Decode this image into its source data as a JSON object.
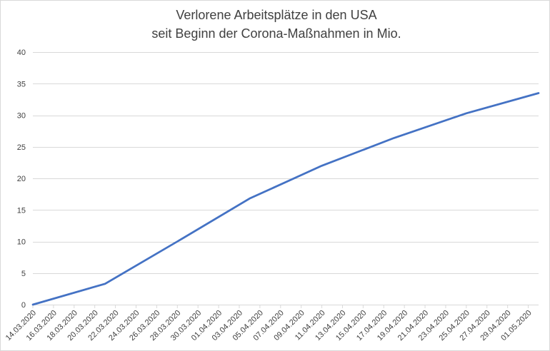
{
  "chart_data": {
    "type": "line",
    "title": [
      "Verlorene Arbeitsplätze in den USA",
      "seit Beginn der Corona-Maßnahmen in Mio."
    ],
    "xlabel": "",
    "ylabel": "",
    "x_tick_labels": [
      "14.03.2020",
      "16.03.2020",
      "18.03.2020",
      "20.03.2020",
      "22.03.2020",
      "24.03.2020",
      "26.03.2020",
      "28.03.2020",
      "30.03.2020",
      "01.04.2020",
      "03.04.2020",
      "05.04.2020",
      "07.04.2020",
      "09.04.2020",
      "11.04.2020",
      "13.04.2020",
      "15.04.2020",
      "17.04.2020",
      "19.04.2020",
      "21.04.2020",
      "23.04.2020",
      "25.04.2020",
      "27.04.2020",
      "29.04.2020",
      "01.05.2020"
    ],
    "xlim": [
      "14.03.2020",
      "02.05.2020"
    ],
    "ylim": [
      0,
      40
    ],
    "y_ticks": [
      0,
      5,
      10,
      15,
      20,
      25,
      30,
      35,
      40
    ],
    "grid": "horizontal",
    "legend": "none",
    "series": [
      {
        "color": "#4472c4",
        "points": [
          {
            "x": "14.03.2020",
            "y": 0
          },
          {
            "x": "21.03.2020",
            "y": 3.3
          },
          {
            "x": "28.03.2020",
            "y": 10.0
          },
          {
            "x": "04.04.2020",
            "y": 16.8
          },
          {
            "x": "11.04.2020",
            "y": 22.0
          },
          {
            "x": "18.04.2020",
            "y": 26.4
          },
          {
            "x": "25.04.2020",
            "y": 30.3
          },
          {
            "x": "02.05.2020",
            "y": 33.5
          }
        ]
      }
    ]
  }
}
